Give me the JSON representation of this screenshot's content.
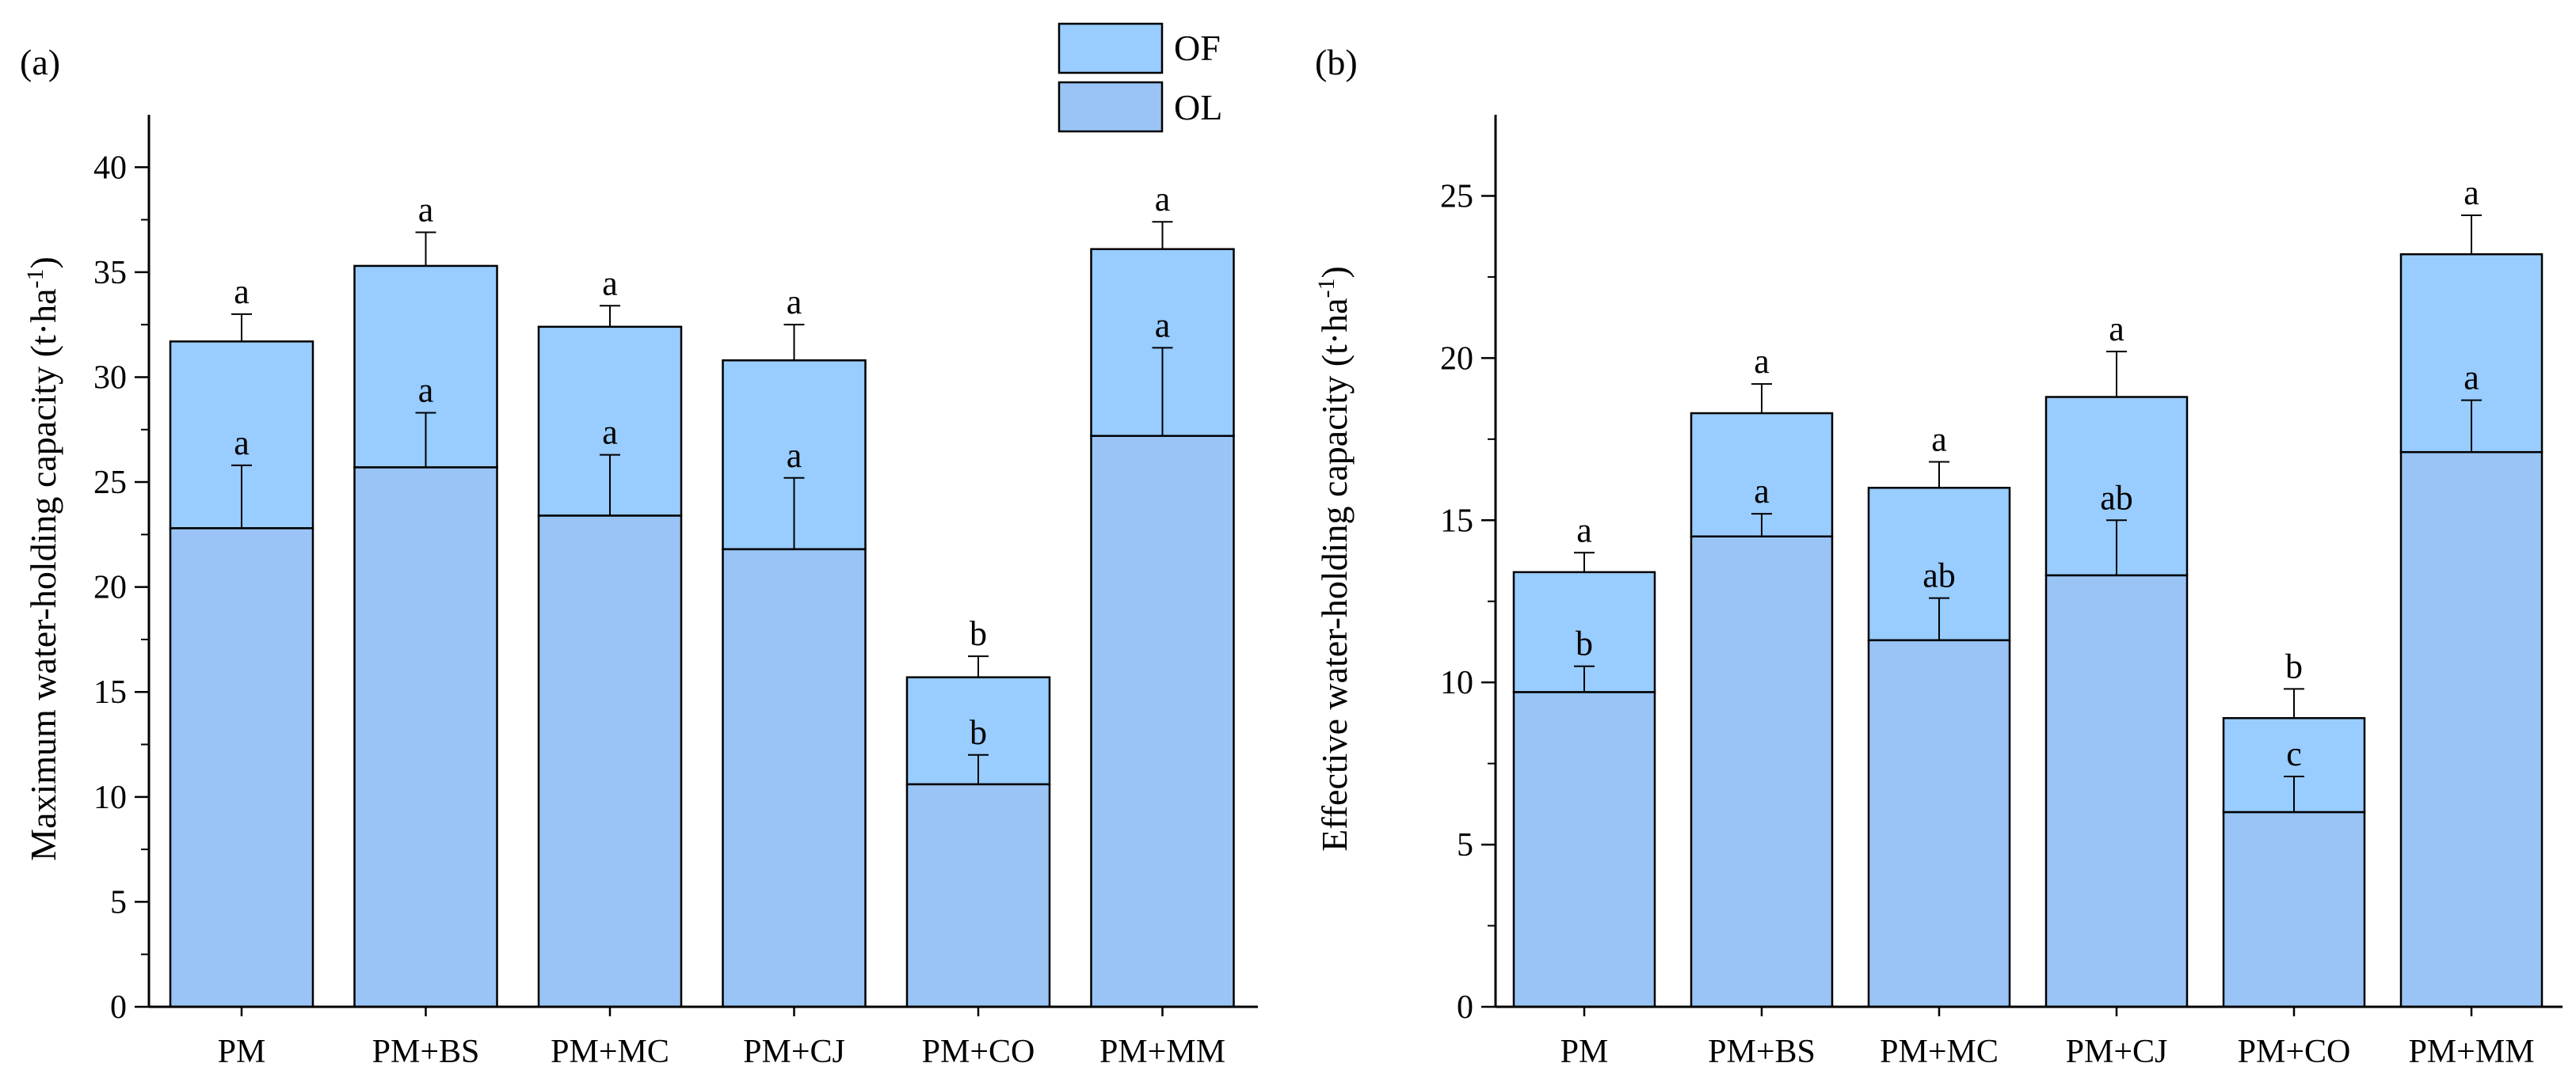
{
  "chart_data": [
    {
      "type": "bar",
      "stacked": true,
      "panel_label": "(a)",
      "ylabel_main": "Maximum water-holding capacity (t·ha",
      "ylabel_sup": "-1",
      "ylabel_close": ")",
      "categories": [
        "PM",
        "PM+BS",
        "PM+MC",
        "PM+CJ",
        "PM+CO",
        "PM+MM"
      ],
      "ylim": [
        0,
        42.5
      ],
      "yticks": [
        0,
        5,
        10,
        15,
        20,
        25,
        30,
        35,
        40
      ],
      "ytick_labels": [
        "0",
        "5",
        "10",
        "15",
        "20",
        "25",
        "30",
        "35",
        "40"
      ],
      "series": [
        {
          "name": "OL",
          "values": [
            22.8,
            25.7,
            23.4,
            21.8,
            10.6,
            27.2
          ],
          "errors": [
            3.0,
            2.6,
            2.9,
            3.4,
            1.4,
            4.2
          ],
          "letters": [
            "a",
            "a",
            "a",
            "a",
            "b",
            "a"
          ]
        },
        {
          "name": "OF",
          "totals": [
            31.7,
            35.3,
            32.4,
            30.8,
            15.7,
            36.1
          ],
          "errors": [
            1.3,
            1.6,
            1.0,
            1.7,
            1.0,
            1.3
          ],
          "letters": [
            "a",
            "a",
            "a",
            "a",
            "b",
            "a"
          ]
        }
      ]
    },
    {
      "type": "bar",
      "stacked": true,
      "panel_label": "(b)",
      "ylabel_main": "Effective water-holding capacity (t·ha",
      "ylabel_sup": "-1",
      "ylabel_close": ")",
      "categories": [
        "PM",
        "PM+BS",
        "PM+MC",
        "PM+CJ",
        "PM+CO",
        "PM+MM"
      ],
      "ylim": [
        0,
        27.5
      ],
      "yticks": [
        0,
        5,
        10,
        15,
        20,
        25
      ],
      "ytick_labels": [
        "0",
        "5",
        "10",
        "15",
        "20",
        "25"
      ],
      "series": [
        {
          "name": "OL",
          "values": [
            9.7,
            14.5,
            11.3,
            13.3,
            6.0,
            17.1
          ],
          "errors": [
            0.8,
            0.7,
            1.3,
            1.7,
            1.1,
            1.6
          ],
          "letters": [
            "b",
            "a",
            "ab",
            "ab",
            "c",
            "a"
          ]
        },
        {
          "name": "OF",
          "totals": [
            13.4,
            18.3,
            16.0,
            18.8,
            8.9,
            23.2
          ],
          "errors": [
            0.6,
            0.9,
            0.8,
            1.4,
            0.9,
            1.2
          ],
          "letters": [
            "a",
            "a",
            "a",
            "a",
            "b",
            "a"
          ]
        }
      ]
    }
  ],
  "legend": {
    "position": "top-center",
    "items": [
      {
        "label": "OF",
        "color": "#99CCFF"
      },
      {
        "label": "OL",
        "color": "#99C4F5"
      }
    ]
  },
  "colors": {
    "of_fill": "#99CCFF",
    "ol_fill": "#99C4F5",
    "stroke": "#000000"
  }
}
